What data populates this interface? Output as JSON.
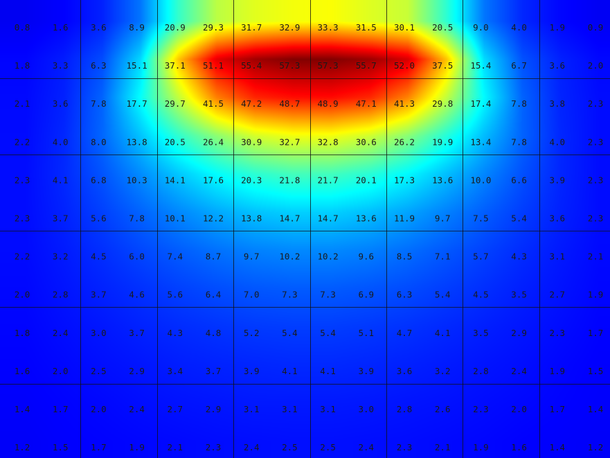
{
  "chart_data": {
    "type": "heatmap",
    "title": "",
    "xlabel": "",
    "ylabel": "",
    "colormap": "jet",
    "value_range": [
      0,
      57.5
    ],
    "gridlines": "every 2 columns and every 2 rows",
    "rows": [
      [
        0.8,
        1.6,
        3.6,
        8.9,
        20.9,
        29.3,
        31.7,
        32.9,
        33.3,
        31.5,
        30.1,
        20.5,
        9.0,
        4.0,
        1.9,
        0.9
      ],
      [
        1.8,
        3.3,
        6.3,
        15.1,
        37.1,
        51.1,
        55.4,
        57.3,
        57.3,
        55.7,
        52.0,
        37.5,
        15.4,
        6.7,
        3.6,
        2.0
      ],
      [
        2.1,
        3.6,
        7.8,
        17.7,
        29.7,
        41.5,
        47.2,
        48.7,
        48.9,
        47.1,
        41.3,
        29.8,
        17.4,
        7.8,
        3.8,
        2.3
      ],
      [
        2.2,
        4.0,
        8.0,
        13.8,
        20.5,
        26.4,
        30.9,
        32.7,
        32.8,
        30.6,
        26.2,
        19.9,
        13.4,
        7.8,
        4.0,
        2.3
      ],
      [
        2.3,
        4.1,
        6.8,
        10.3,
        14.1,
        17.6,
        20.3,
        21.8,
        21.7,
        20.1,
        17.3,
        13.6,
        10.0,
        6.6,
        3.9,
        2.3
      ],
      [
        2.3,
        3.7,
        5.6,
        7.8,
        10.1,
        12.2,
        13.8,
        14.7,
        14.7,
        13.6,
        11.9,
        9.7,
        7.5,
        5.4,
        3.6,
        2.3
      ],
      [
        2.2,
        3.2,
        4.5,
        6.0,
        7.4,
        8.7,
        9.7,
        10.2,
        10.2,
        9.6,
        8.5,
        7.1,
        5.7,
        4.3,
        3.1,
        2.1
      ],
      [
        2.0,
        2.8,
        3.7,
        4.6,
        5.6,
        6.4,
        7.0,
        7.3,
        7.3,
        6.9,
        6.3,
        5.4,
        4.5,
        3.5,
        2.7,
        1.9
      ],
      [
        1.8,
        2.4,
        3.0,
        3.7,
        4.3,
        4.8,
        5.2,
        5.4,
        5.4,
        5.1,
        4.7,
        4.1,
        3.5,
        2.9,
        2.3,
        1.7
      ],
      [
        1.6,
        2.0,
        2.5,
        2.9,
        3.4,
        3.7,
        3.9,
        4.1,
        4.1,
        3.9,
        3.6,
        3.2,
        2.8,
        2.4,
        1.9,
        1.5
      ],
      [
        1.4,
        1.7,
        2.0,
        2.4,
        2.7,
        2.9,
        3.1,
        3.1,
        3.1,
        3.0,
        2.8,
        2.6,
        2.3,
        2.0,
        1.7,
        1.4
      ],
      [
        1.2,
        1.5,
        1.7,
        1.9,
        2.1,
        2.3,
        2.4,
        2.5,
        2.5,
        2.4,
        2.3,
        2.1,
        1.9,
        1.6,
        1.4,
        1.2
      ]
    ]
  }
}
